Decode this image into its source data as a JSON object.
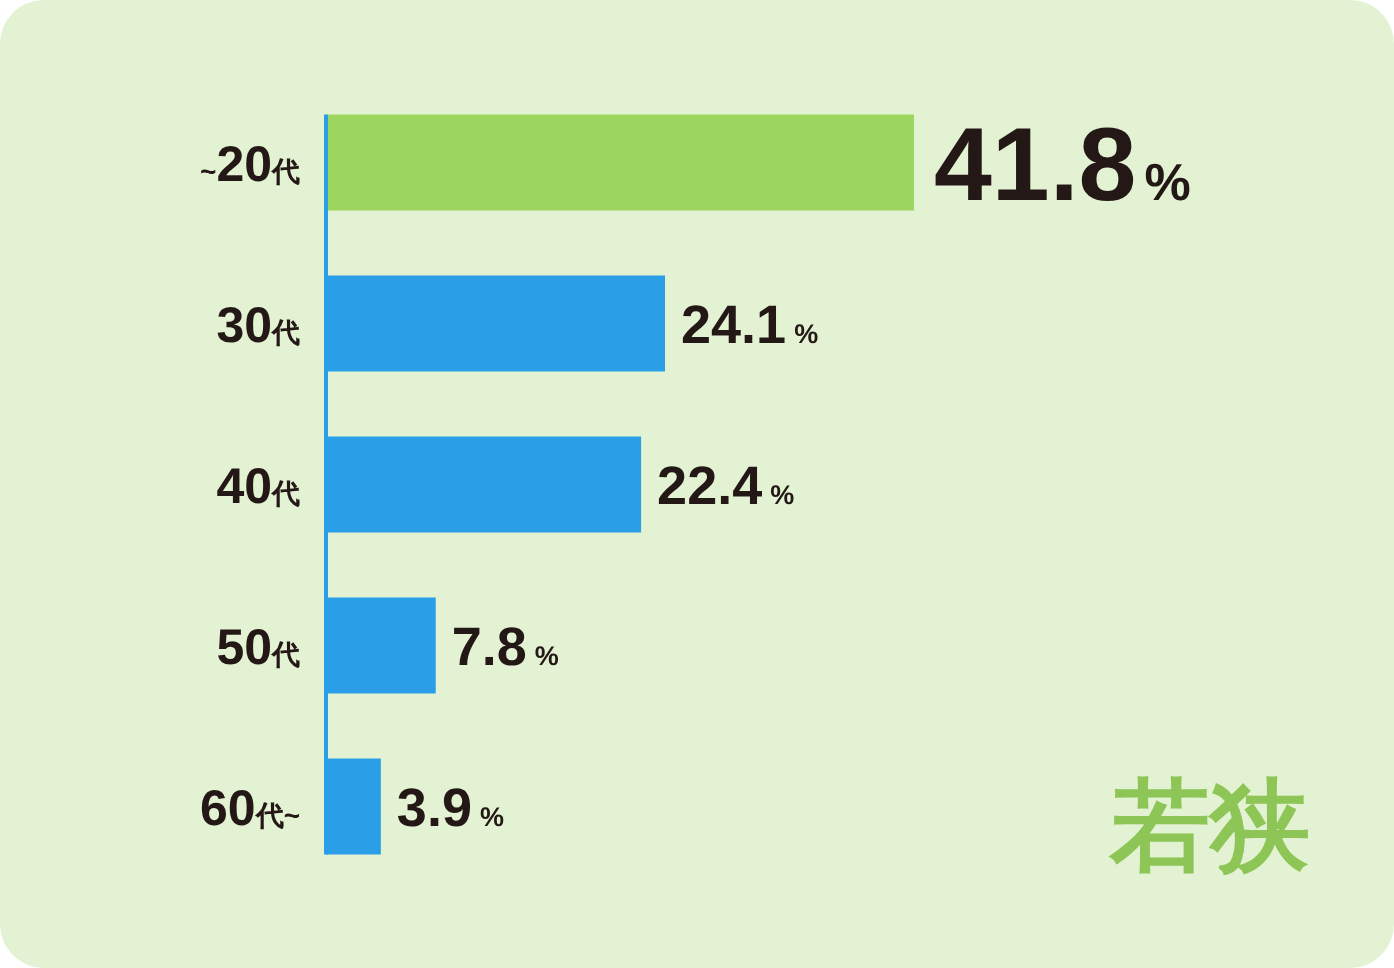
{
  "chart_data": {
    "type": "bar",
    "orientation": "horizontal",
    "categories": [
      "~20代",
      "30代",
      "40代",
      "50代",
      "60代~"
    ],
    "values": [
      41.8,
      24.1,
      22.4,
      7.8,
      3.9
    ],
    "colors": [
      "#9dd65e",
      "#2a9fe8",
      "#2a9fe8",
      "#2a9fe8",
      "#2a9fe8"
    ],
    "value_labels": [
      "41.8%",
      "24.1%",
      "22.4%",
      "7.8%",
      "3.9%"
    ],
    "annotations": [
      "若狭"
    ]
  }
}
